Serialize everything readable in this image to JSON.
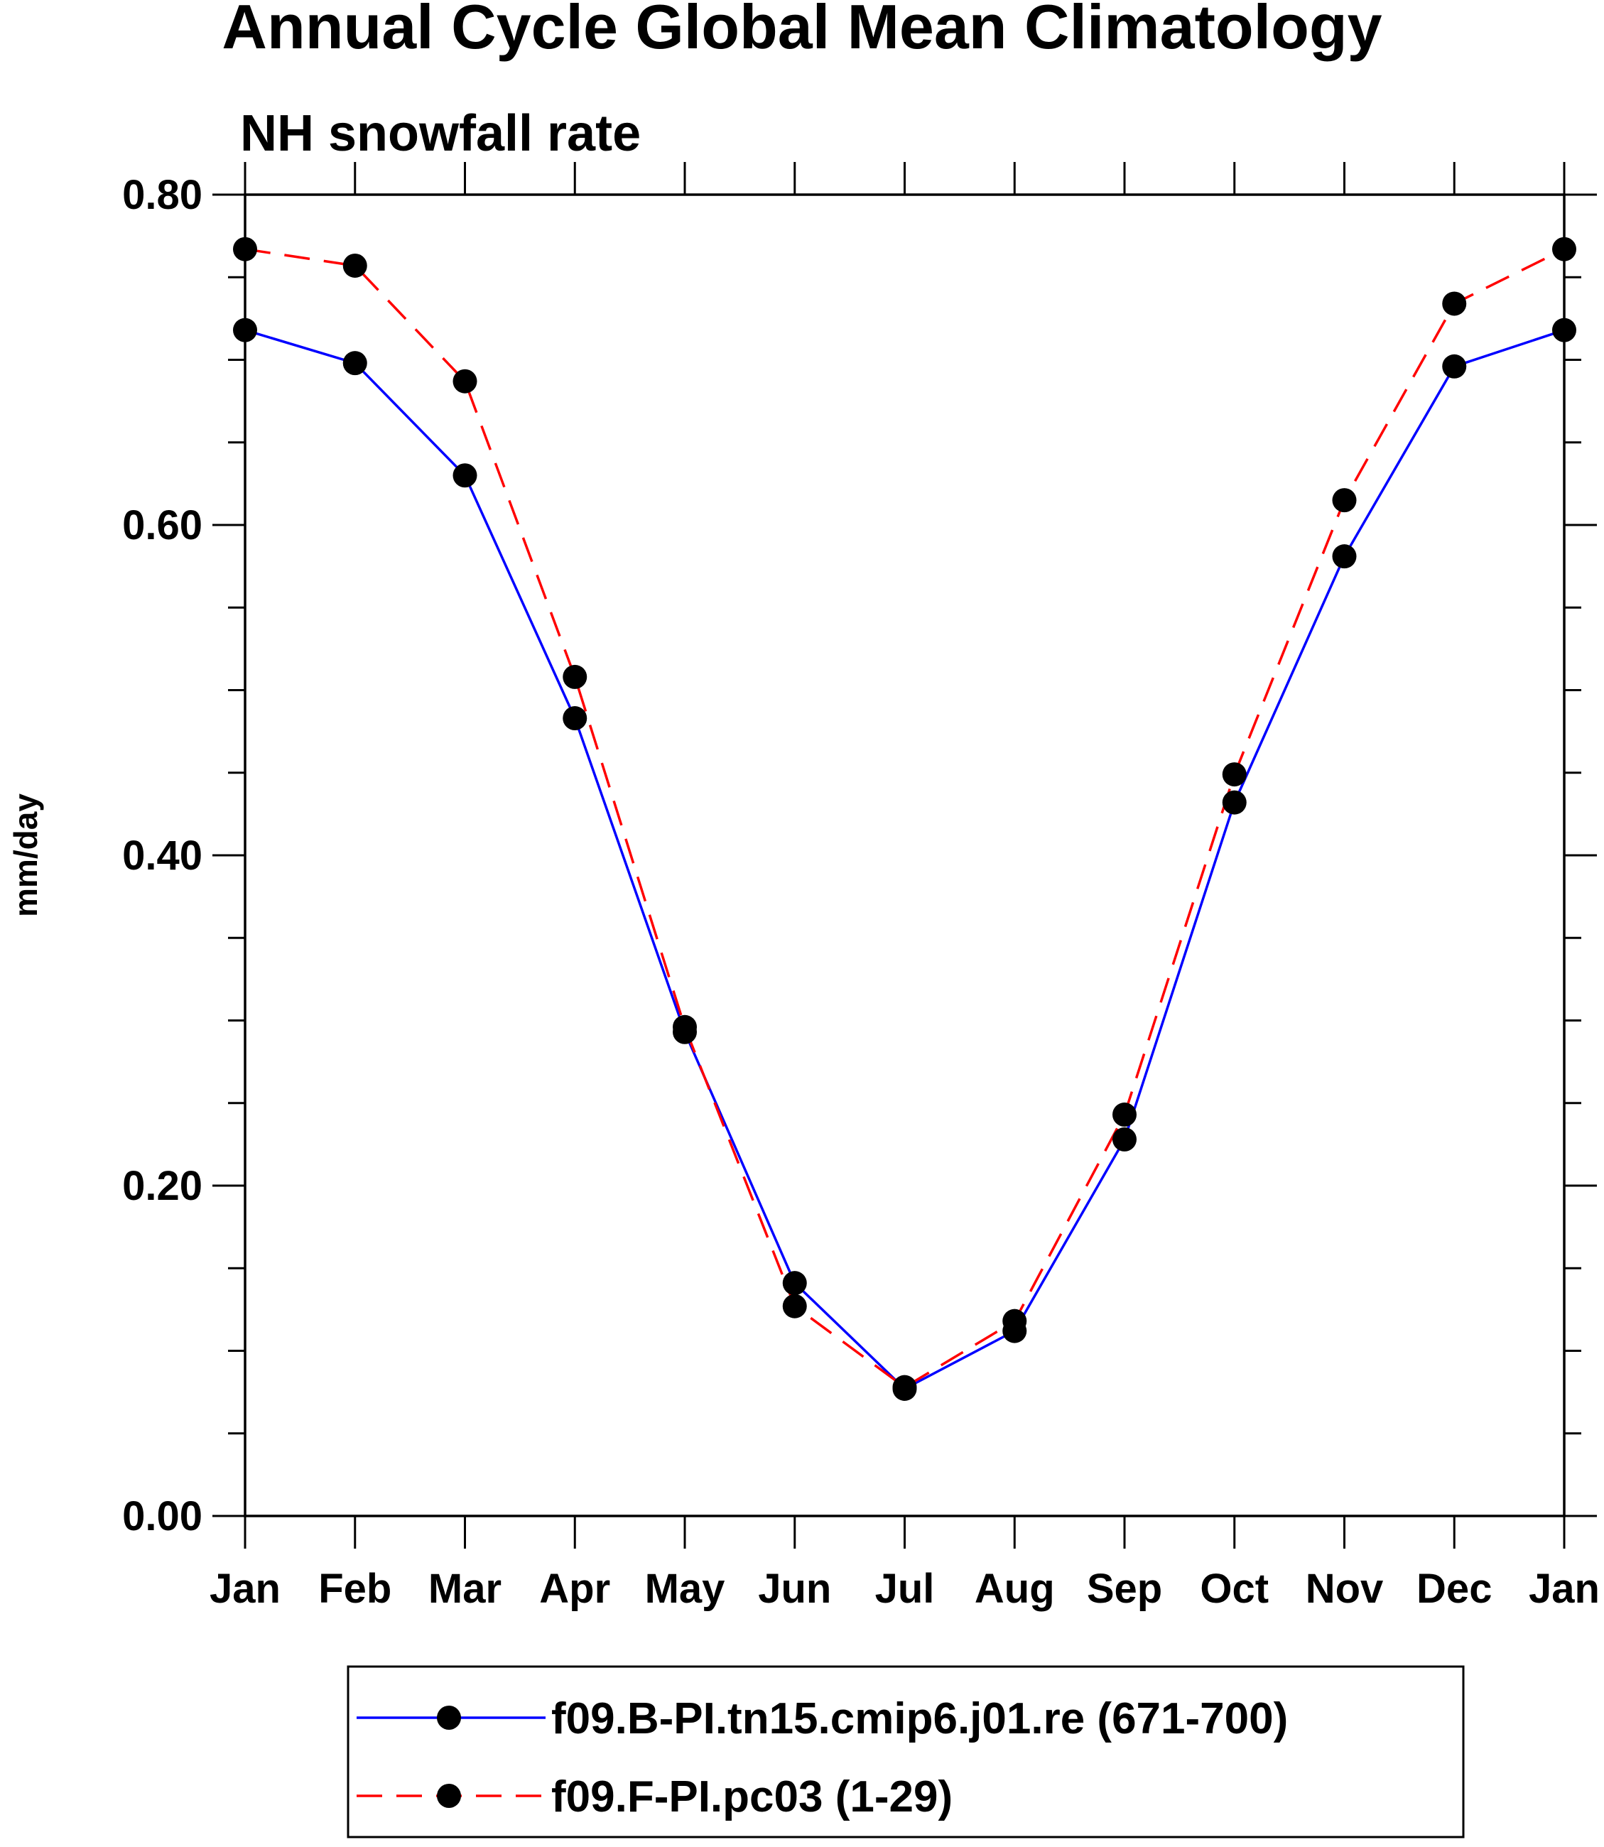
{
  "chart_data": {
    "type": "line",
    "title": "Annual Cycle Global Mean Climatology",
    "subtitle": "NH snowfall rate",
    "xlabel": "",
    "ylabel": "mm/day",
    "ylim": [
      0,
      0.8
    ],
    "yticks": [
      "0.00",
      "0.20",
      "0.40",
      "0.60",
      "0.80"
    ],
    "ytick_values": [
      0,
      0.2,
      0.4,
      0.6,
      0.8
    ],
    "categories": [
      "Jan",
      "Feb",
      "Mar",
      "Apr",
      "May",
      "Jun",
      "Jul",
      "Aug",
      "Sep",
      "Oct",
      "Nov",
      "Dec",
      "Jan"
    ],
    "legend_position": "bottom",
    "series": [
      {
        "name": "f09.B-PI.tn15.cmip6.j01.re (671-700)",
        "color": "#0000ff",
        "dash": "solid",
        "marker": "filled-circle",
        "values": [
          0.718,
          0.698,
          0.63,
          0.483,
          0.293,
          0.141,
          0.077,
          0.112,
          0.228,
          0.432,
          0.581,
          0.696,
          0.718
        ]
      },
      {
        "name": "f09.F-PI.pc03 (1-29)",
        "color": "#ff0000",
        "dash": "dashed",
        "marker": "filled-circle",
        "values": [
          0.767,
          0.757,
          0.687,
          0.508,
          0.296,
          0.127,
          0.078,
          0.118,
          0.243,
          0.449,
          0.615,
          0.734,
          0.767
        ]
      }
    ]
  }
}
